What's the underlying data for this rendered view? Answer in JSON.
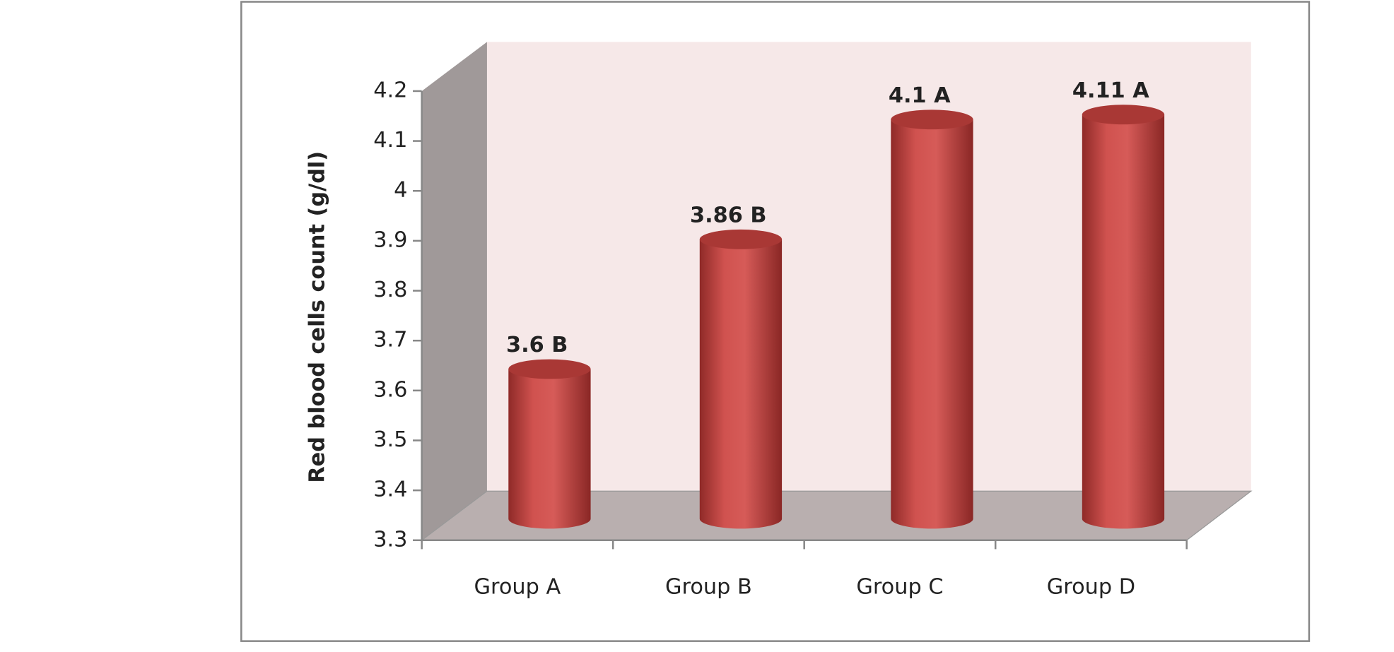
{
  "chart_data": {
    "type": "bar3d",
    "y_label": "Red blood cells count (g/dl)",
    "categories": [
      "Group A",
      "Group B",
      "Group C",
      "Group D"
    ],
    "values": [
      3.6,
      3.86,
      4.1,
      4.11
    ],
    "value_labels": [
      "3.6 B",
      "3.86 B",
      "4.1 A",
      "4.11 A"
    ],
    "color": "#c0504d",
    "ylim": [
      3.3,
      4.2
    ],
    "yticks": [
      3.3,
      3.4,
      3.5,
      3.6,
      3.7,
      3.8,
      3.9,
      4,
      4.1,
      4.2
    ]
  }
}
